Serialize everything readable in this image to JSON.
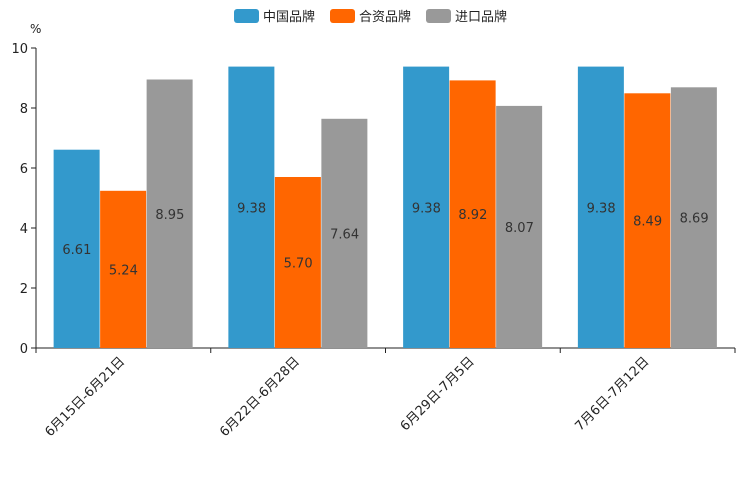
{
  "chart_data": {
    "type": "bar",
    "title": "",
    "xlabel": "",
    "ylabel": "%",
    "ylim": [
      0,
      10
    ],
    "yticks": [
      0,
      2,
      4,
      6,
      8,
      10
    ],
    "grid": false,
    "legend_position": "top-center",
    "categories": [
      "6月15日-6月21日",
      "6月22日-6月28日",
      "6月29日-7月5日",
      "7月6日-7月12日"
    ],
    "series": [
      {
        "name": "中国品牌",
        "color": "#3399cc",
        "values": [
          6.61,
          9.38,
          9.38,
          9.38
        ],
        "labels": [
          "6.61",
          "9.38",
          "9.38",
          "9.38"
        ]
      },
      {
        "name": "合资品牌",
        "color": "#ff6600",
        "values": [
          5.24,
          5.7,
          8.92,
          8.49
        ],
        "labels": [
          "5.24",
          "5.70",
          "8.92",
          "8.49"
        ]
      },
      {
        "name": "进口品牌",
        "color": "#999999",
        "values": [
          8.95,
          7.64,
          8.07,
          8.69
        ],
        "labels": [
          "8.95",
          "7.64",
          "8.07",
          "8.69"
        ]
      }
    ]
  }
}
